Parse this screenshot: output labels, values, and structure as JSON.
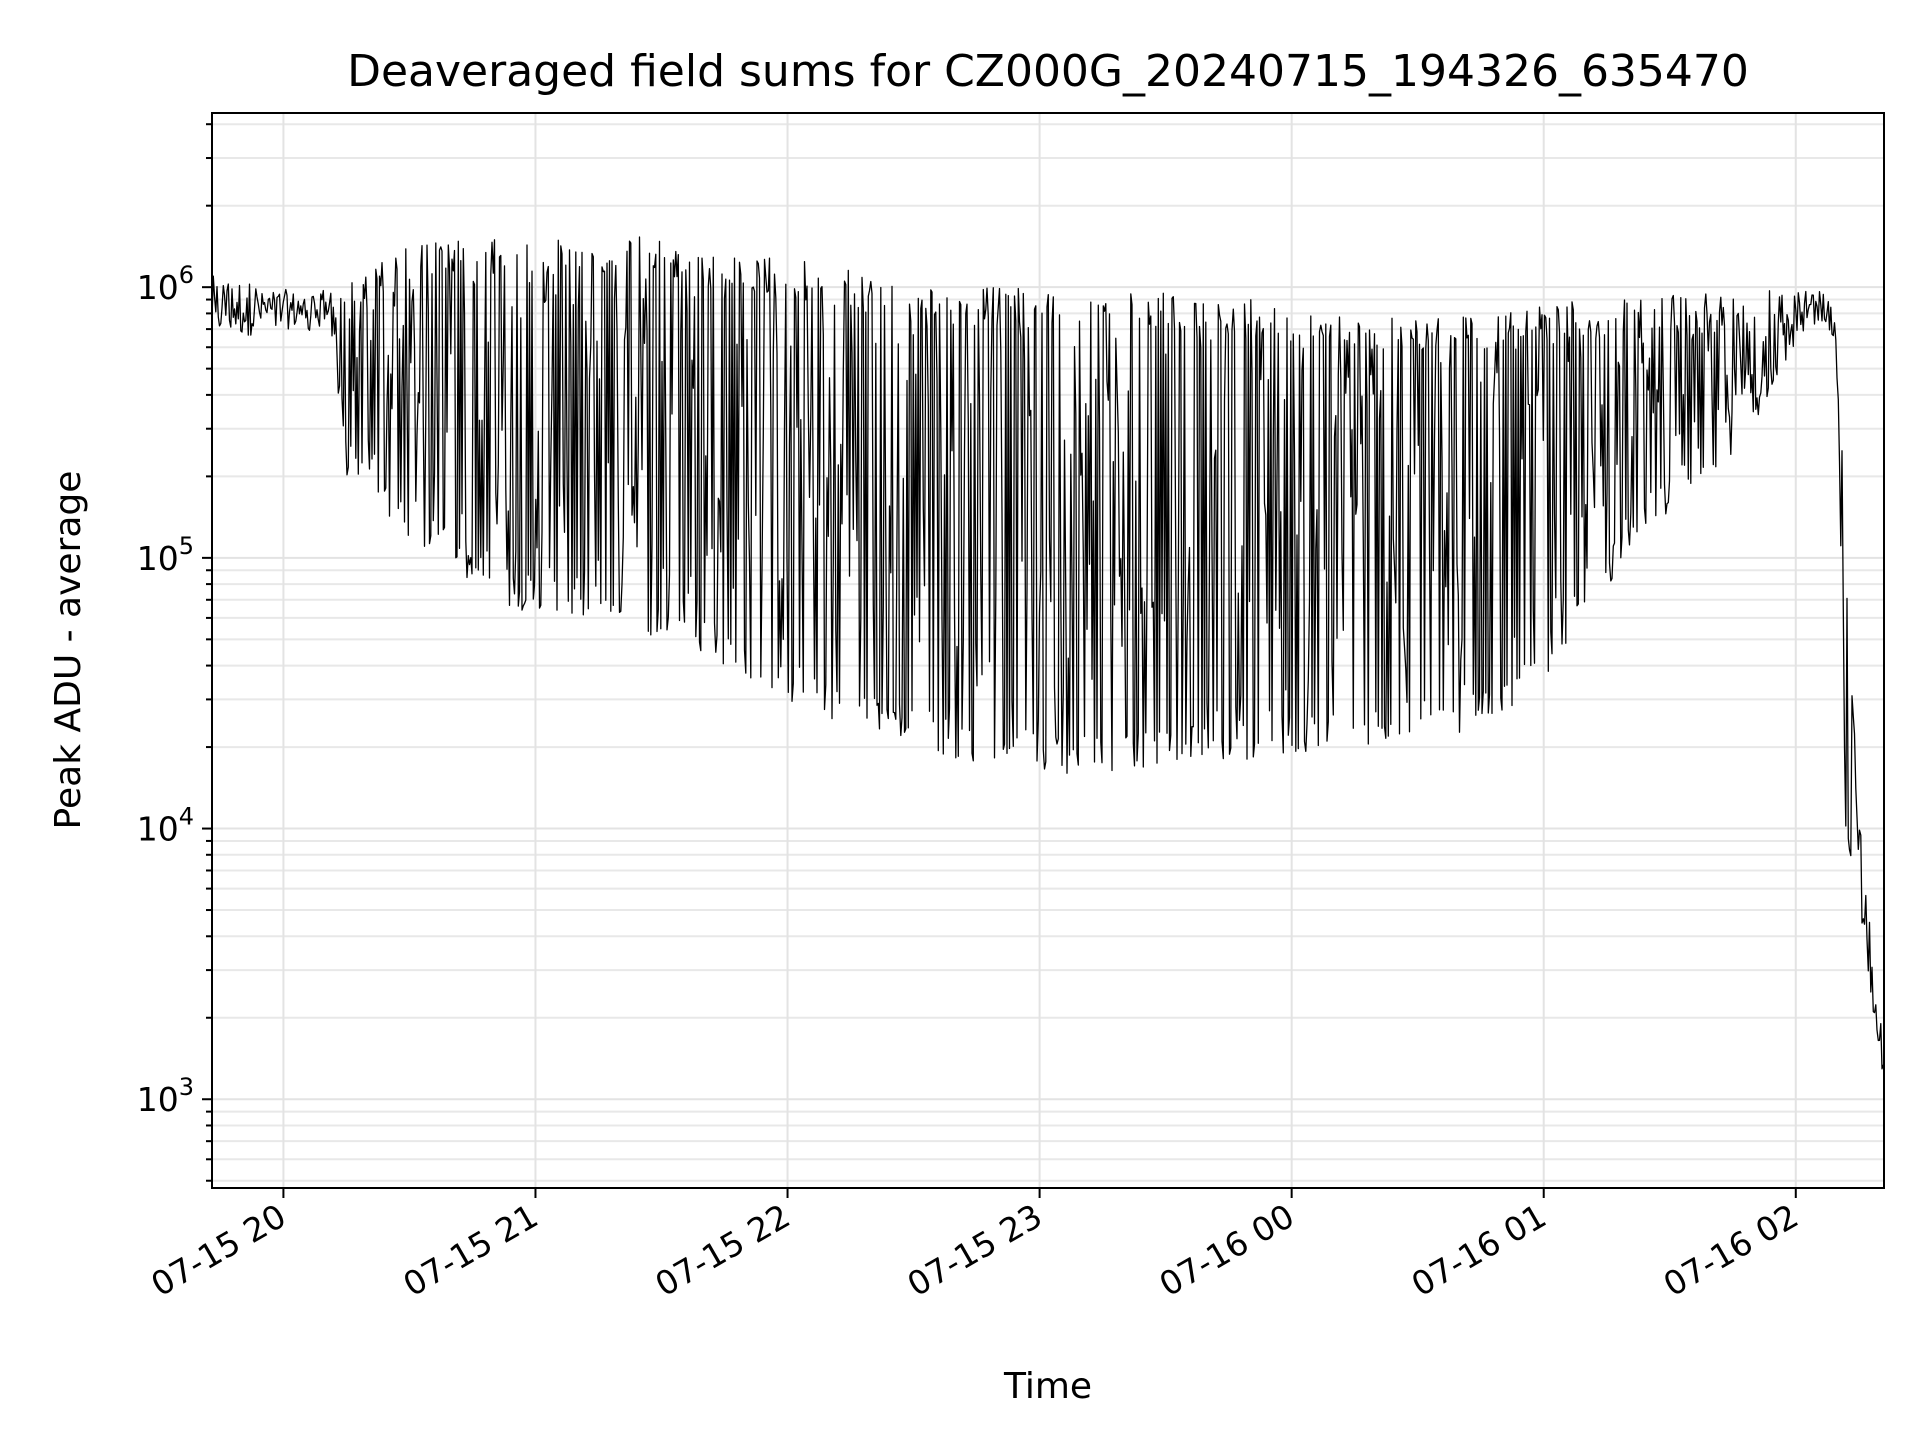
{
  "chart_data": {
    "type": "line",
    "title": "Deaveraged field sums for CZ000G_20240715_194326_635470",
    "xlabel": "Time",
    "ylabel": "Peak ADU - average",
    "yscale": "log",
    "ylim": [
      470,
      4400000
    ],
    "xlim": [
      "2024-07-15 19:43",
      "2024-07-16 02:21"
    ],
    "grid": true,
    "x_ticks": [
      "07-15 20",
      "07-15 21",
      "07-15 22",
      "07-15 23",
      "07-16 00",
      "07-16 01",
      "07-16 02"
    ],
    "y_ticks": [
      {
        "value": 1000,
        "base": "10",
        "exp": "3"
      },
      {
        "value": 10000,
        "base": "10",
        "exp": "4"
      },
      {
        "value": 100000,
        "base": "10",
        "exp": "5"
      },
      {
        "value": 1000000,
        "base": "10",
        "exp": "6"
      }
    ],
    "line_color": "#000000",
    "series": [
      {
        "x": [
          "2024-07-15 19:43",
          "2024-07-15 19:50",
          "2024-07-15 19:58",
          "2024-07-15 20:05",
          "2024-07-15 20:12",
          "2024-07-15 20:14",
          "2024-07-15 20:22",
          "2024-07-15 20:30",
          "2024-07-15 20:40",
          "2024-07-15 20:50",
          "2024-07-15 21:00",
          "2024-07-15 21:10",
          "2024-07-15 21:20",
          "2024-07-15 21:30",
          "2024-07-15 21:40",
          "2024-07-15 21:50",
          "2024-07-15 22:00",
          "2024-07-15 22:10",
          "2024-07-15 22:20",
          "2024-07-15 22:30",
          "2024-07-15 22:40",
          "2024-07-15 22:50",
          "2024-07-15 23:00",
          "2024-07-15 23:10",
          "2024-07-15 23:20",
          "2024-07-15 23:30",
          "2024-07-15 23:40",
          "2024-07-15 23:50",
          "2024-07-16 00:00",
          "2024-07-16 00:10",
          "2024-07-16 00:20",
          "2024-07-16 00:30",
          "2024-07-16 00:40",
          "2024-07-16 00:50",
          "2024-07-16 01:00",
          "2024-07-16 01:10",
          "2024-07-16 01:20",
          "2024-07-16 01:30",
          "2024-07-16 01:40",
          "2024-07-16 01:50",
          "2024-07-16 02:00",
          "2024-07-16 02:05",
          "2024-07-16 02:08",
          "2024-07-16 02:10",
          "2024-07-16 02:12",
          "2024-07-16 02:16",
          "2024-07-16 02:21"
        ],
        "upper": [
          1100000,
          1100000,
          1000000,
          950000,
          1000000,
          1000000,
          1200000,
          1500000,
          1500000,
          1500000,
          1500000,
          1500000,
          1500000,
          1600000,
          1300000,
          1300000,
          1300000,
          1200000,
          1100000,
          1000000,
          1000000,
          1000000,
          1000000,
          950000,
          950000,
          950000,
          900000,
          900000,
          850000,
          800000,
          800000,
          800000,
          800000,
          800000,
          850000,
          900000,
          900000,
          950000,
          950000,
          1000000,
          1000000,
          1000000,
          900000,
          700000,
          100000,
          8000,
          2000
        ],
        "lower": [
          650000,
          650000,
          700000,
          700000,
          650000,
          200000,
          150000,
          120000,
          90000,
          70000,
          60000,
          60000,
          55000,
          50000,
          45000,
          35000,
          28000,
          25000,
          22000,
          20000,
          18000,
          17000,
          16000,
          16000,
          16000,
          17000,
          18000,
          18000,
          19000,
          19000,
          20000,
          21000,
          22000,
          25000,
          35000,
          60000,
          100000,
          150000,
          200000,
          300000,
          600000,
          800000,
          700000,
          400000,
          8000,
          4000,
          1000
        ]
      }
    ]
  }
}
